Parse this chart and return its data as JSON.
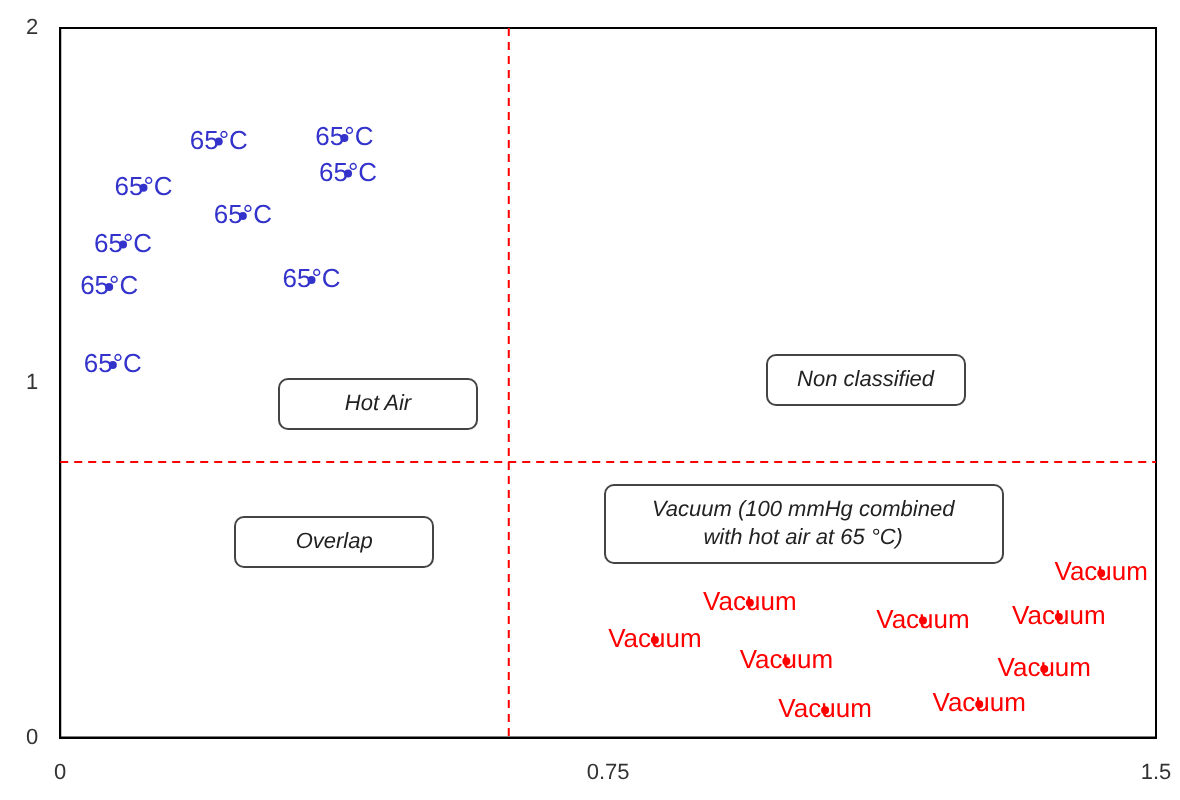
{
  "chart_data": {
    "type": "scatter",
    "xlim": [
      0,
      1.5
    ],
    "ylim": [
      0,
      2
    ],
    "xticks": [
      0,
      0.75,
      1.5
    ],
    "yticks": [
      0,
      1,
      2
    ],
    "grid": false,
    "legend": false,
    "series": [
      {
        "name": "65°C",
        "color": "#3333cc",
        "x": [
          0.217,
          0.389,
          0.114,
          0.394,
          0.25,
          0.086,
          0.067,
          0.344,
          0.072
        ],
        "values": [
          1.68,
          1.69,
          1.55,
          1.59,
          1.47,
          1.39,
          1.27,
          1.29,
          1.05
        ]
      },
      {
        "name": "Vacuum",
        "color": "#ff0000",
        "x": [
          0.814,
          0.944,
          0.994,
          1.047,
          1.181,
          1.258,
          1.367,
          1.347,
          1.425
        ],
        "values": [
          0.275,
          0.38,
          0.215,
          0.077,
          0.33,
          0.094,
          0.34,
          0.193,
          0.463
        ]
      }
    ],
    "ref_lines": [
      {
        "axis": "x",
        "value": 0.614,
        "color": "#ff0000",
        "line_style": "dashed"
      },
      {
        "axis": "y",
        "value": 0.777,
        "color": "#ff0000",
        "line_style": "dashed"
      }
    ],
    "annotations": [
      "Hot Air",
      "Overlap",
      "Non classified",
      "Vacuum (100 mmHg combined with hot air at 65 °C)"
    ]
  }
}
